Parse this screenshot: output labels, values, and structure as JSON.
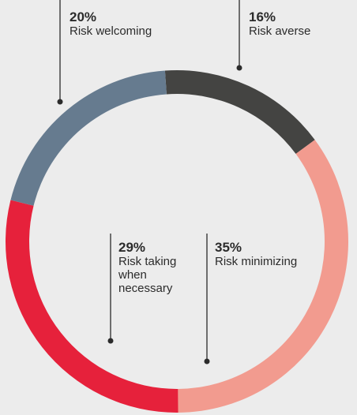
{
  "chart_data": {
    "type": "pie",
    "variant": "donut",
    "slices": [
      {
        "label": "Risk averse",
        "percent_label": "16%",
        "value": 16,
        "color": "#444442"
      },
      {
        "label": "Risk minimizing",
        "percent_label": "35%",
        "value": 35,
        "color": "#f29b8f"
      },
      {
        "label": "Risk taking\nwhen\nnecessary",
        "percent_label": "29%",
        "value": 29,
        "color": "#e6213b"
      },
      {
        "label": "Risk welcoming",
        "percent_label": "20%",
        "value": 20,
        "color": "#667b8f"
      }
    ]
  }
}
